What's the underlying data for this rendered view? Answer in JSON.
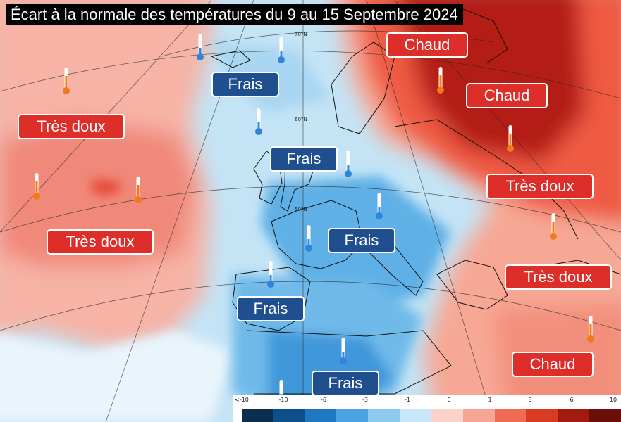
{
  "title": "Écart à la normale des températures du 9 au 15 Septembre 2024",
  "regions": [
    {
      "text": "Chaud",
      "kind": "warm"
    },
    {
      "text": "Chaud",
      "kind": "warm"
    },
    {
      "text": "Très doux",
      "kind": "warm"
    },
    {
      "text": "Très doux",
      "kind": "warm"
    },
    {
      "text": "Très doux",
      "kind": "warm"
    },
    {
      "text": "Très doux",
      "kind": "warm"
    },
    {
      "text": "Chaud",
      "kind": "warm"
    },
    {
      "text": "Frais",
      "kind": "cool"
    },
    {
      "text": "Frais",
      "kind": "cool"
    },
    {
      "text": "Frais",
      "kind": "cool"
    },
    {
      "text": "Frais",
      "kind": "cool"
    },
    {
      "text": "Frais",
      "kind": "cool"
    }
  ],
  "latitude_labels": [
    "70°N",
    "60°N",
    "50°N"
  ],
  "legend": {
    "ticks": [
      "<-10",
      "-10",
      "-6",
      "-3",
      "-1",
      "0",
      "1",
      "3",
      "6",
      "10"
    ],
    "colors": [
      "#0b2e4f",
      "#0d4f8b",
      "#1f77c2",
      "#4aa3e0",
      "#8ccaf0",
      "#c8e7fa",
      "#f9d3c9",
      "#f4a593",
      "#ee6a52",
      "#d93a22",
      "#a51a0f",
      "#6b0e08"
    ]
  },
  "thermometer_icons": {
    "warm": "thermometer-warm-icon",
    "cool": "thermometer-cool-icon"
  }
}
